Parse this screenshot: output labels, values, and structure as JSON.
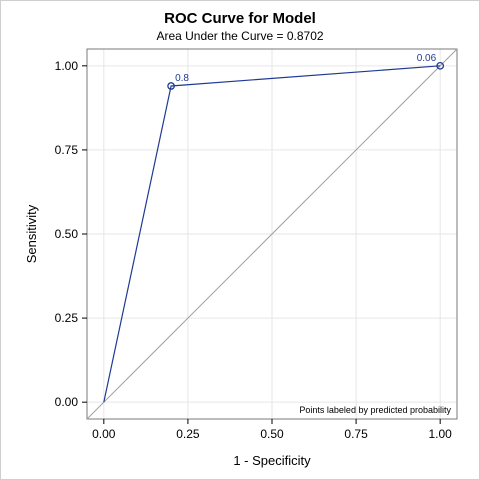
{
  "chart_data": {
    "type": "line",
    "title": "ROC Curve for Model",
    "subtitle": "Area Under the Curve = 0.8702",
    "xlabel": "1 - Specificity",
    "ylabel": "Sensitivity",
    "xlim": [
      -0.05,
      1.05
    ],
    "ylim": [
      -0.05,
      1.05
    ],
    "x_ticks": [
      "0.00",
      "0.25",
      "0.50",
      "0.75",
      "1.00"
    ],
    "y_ticks": [
      "0.00",
      "0.25",
      "0.50",
      "0.75",
      "1.00"
    ],
    "x_tick_values": [
      0,
      0.25,
      0.5,
      0.75,
      1
    ],
    "y_tick_values": [
      0,
      0.25,
      0.5,
      0.75,
      1
    ],
    "grid": true,
    "series": [
      {
        "x": [
          0.0,
          0.2,
          1.0
        ],
        "y": [
          0.0,
          0.94,
          1.0
        ],
        "color": "#1f3a93"
      }
    ],
    "reference_line": {
      "x": [
        -0.05,
        1.05
      ],
      "y": [
        -0.05,
        1.05
      ],
      "color": "#a0a0a0"
    },
    "labeled_points": [
      {
        "x": 0.2,
        "y": 0.94,
        "label": "0.8"
      },
      {
        "x": 1.0,
        "y": 1.0,
        "label": "0.06"
      }
    ],
    "note": "Points labeled by predicted probability"
  }
}
